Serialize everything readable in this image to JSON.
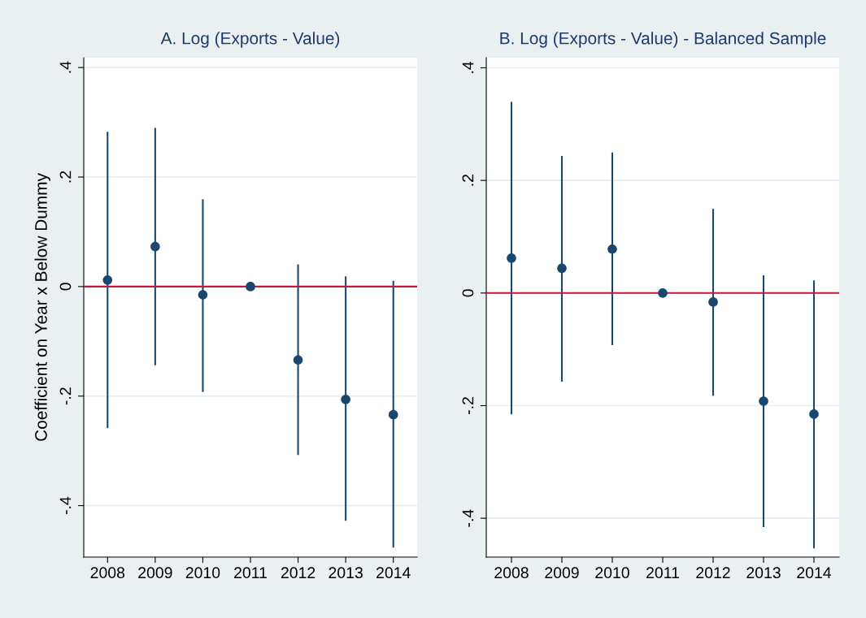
{
  "chart_data": [
    {
      "type": "scatter",
      "title": "A. Log (Exports - Value)",
      "ylabel": "Coefficient on Year x Below Dummy",
      "categories": [
        "2008",
        "2009",
        "2010",
        "2011",
        "2012",
        "2013",
        "2014"
      ],
      "series": [
        {
          "color": "#1a476f",
          "values": [
            0.012,
            0.073,
            -0.015,
            0,
            -0.134,
            -0.206,
            -0.234
          ],
          "errors": [
            [
              -0.257,
              0.281
            ],
            [
              -0.142,
              0.288
            ],
            [
              -0.191,
              0.158
            ],
            null,
            [
              -0.306,
              0.039
            ],
            [
              -0.426,
              0.017
            ],
            [
              -0.475,
              0.009
            ]
          ]
        }
      ],
      "ylim": [
        -0.494,
        0.418
      ],
      "yticks": [
        {
          "value": -0.4,
          "label": "-.4"
        },
        {
          "value": -0.2,
          "label": "-.2"
        },
        0,
        {
          "value": 0.2,
          "label": ".2"
        },
        {
          "value": 0.4,
          "label": ".4"
        }
      ],
      "ref_lines": [
        {
          "axis": "y",
          "value": 0,
          "color": "#c8173c"
        }
      ],
      "grid": "y",
      "marker": "circle"
    },
    {
      "type": "scatter",
      "title": "B. Log (Exports - Value) - Balanced Sample",
      "categories": [
        "2008",
        "2009",
        "2010",
        "2011",
        "2012",
        "2013",
        "2014"
      ],
      "series": [
        {
          "color": "#1a476f",
          "values": [
            0.062,
            0.044,
            0.078,
            0,
            -0.016,
            -0.192,
            -0.215
          ],
          "errors": [
            [
              -0.214,
              0.338
            ],
            [
              -0.156,
              0.242
            ],
            [
              -0.091,
              0.248
            ],
            null,
            [
              -0.181,
              0.148
            ],
            [
              -0.414,
              0.03
            ],
            [
              -0.452,
              0.021
            ]
          ]
        }
      ],
      "ylim": [
        -0.469,
        0.418
      ],
      "yticks": [
        {
          "value": -0.4,
          "label": "-.4"
        },
        {
          "value": -0.2,
          "label": "-.2"
        },
        0,
        {
          "value": 0.2,
          "label": ".2"
        },
        {
          "value": 0.4,
          "label": ".4"
        }
      ],
      "ref_lines": [
        {
          "axis": "y",
          "value": 0,
          "color": "#c8173c"
        }
      ],
      "grid": "y",
      "marker": "circle"
    }
  ]
}
